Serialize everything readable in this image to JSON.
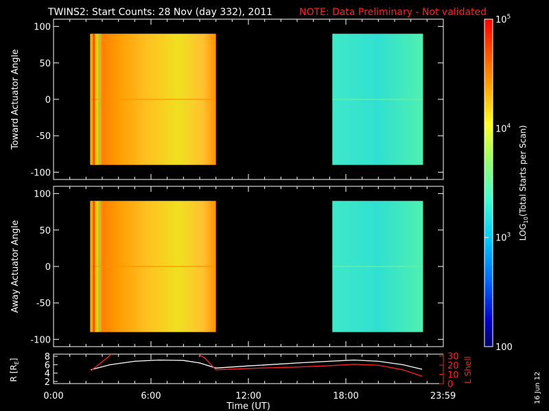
{
  "header": {
    "title": "TWINS2: Start Counts: 28 Nov (day 332), 2011",
    "note": "NOTE: Data Preliminary - Not validated"
  },
  "footer": {
    "date_stamp": "16 Jun 12"
  },
  "colors": {
    "note": "#ff2020",
    "axis": "#ffffff",
    "lshell": "#ff2020",
    "r_line": "#ffffff"
  },
  "chart_data": [
    {
      "type": "heatmap",
      "panel": "toward",
      "ylabel": "Toward Actuator Angle",
      "ylim": [
        -110,
        110
      ],
      "yticks": [
        100,
        50,
        0,
        -50,
        -100
      ],
      "xlim_hours": [
        0,
        24
      ],
      "blocks": [
        {
          "start": "2:15",
          "end": "10:00",
          "angle_range": [
            -90,
            90
          ],
          "typical_log10": 4.4
        },
        {
          "start": "17:10",
          "end": "22:45",
          "angle_range": [
            -90,
            90
          ],
          "typical_log10": 3.5
        }
      ]
    },
    {
      "type": "heatmap",
      "panel": "away",
      "ylabel": "Away Actuator Angle",
      "ylim": [
        -110,
        110
      ],
      "yticks": [
        100,
        50,
        0,
        -50,
        -100
      ],
      "xlim_hours": [
        0,
        24
      ],
      "blocks": [
        {
          "start": "2:15",
          "end": "10:00",
          "angle_range": [
            -90,
            90
          ],
          "typical_log10": 4.3
        },
        {
          "start": "17:10",
          "end": "22:45",
          "angle_range": [
            -90,
            90
          ],
          "typical_log10": 3.5
        }
      ]
    },
    {
      "type": "colorbar",
      "label_prefix": "LOG",
      "label_sub": "10",
      "label_suffix": "(Total Starts per Scan)",
      "ticks": [
        {
          "base": "10",
          "exp": "5",
          "log10": 5
        },
        {
          "base": "10",
          "exp": "4",
          "log10": 4
        },
        {
          "base": "10",
          "exp": "3",
          "log10": 3
        },
        {
          "base": "100",
          "exp": "",
          "log10": 2
        }
      ],
      "range_log10": [
        2,
        5
      ]
    },
    {
      "type": "line",
      "panel": "orbit",
      "xlabel": "Time (UT)",
      "xticks": [
        "0:00",
        "6:00",
        "12:00",
        "18:00",
        "23:59"
      ],
      "xtick_hours": [
        0,
        6,
        12,
        18,
        23.983
      ],
      "left_axis": {
        "label": "R [R",
        "label_sub": "E",
        "label_end": "]",
        "ticks": [
          2,
          4,
          6,
          8
        ],
        "ylim": [
          1.5,
          8.5
        ]
      },
      "right_axis": {
        "label": "L Shell",
        "ticks": [
          0,
          10,
          20,
          30
        ],
        "ylim": [
          0,
          32
        ]
      },
      "series": [
        {
          "axis": "left",
          "x": [
            2.3,
            3.5,
            5,
            6.5,
            8,
            9,
            10,
            12,
            15,
            17,
            18.5,
            20,
            21.5,
            22.7
          ],
          "values": [
            4.8,
            6.0,
            6.8,
            7.1,
            7.0,
            6.4,
            5.2,
            5.7,
            6.4,
            6.8,
            7.1,
            6.8,
            6.0,
            4.9
          ]
        },
        {
          "axis": "right",
          "x": [
            2.3,
            2.8,
            3.3,
            3.6,
            8.8,
            9.3,
            10,
            12,
            15,
            17,
            18.5,
            20,
            21.5,
            22.7
          ],
          "values": [
            14,
            21,
            28,
            33,
            33,
            28,
            15,
            16.5,
            18,
            19.5,
            21,
            20,
            15,
            8
          ]
        }
      ]
    }
  ]
}
